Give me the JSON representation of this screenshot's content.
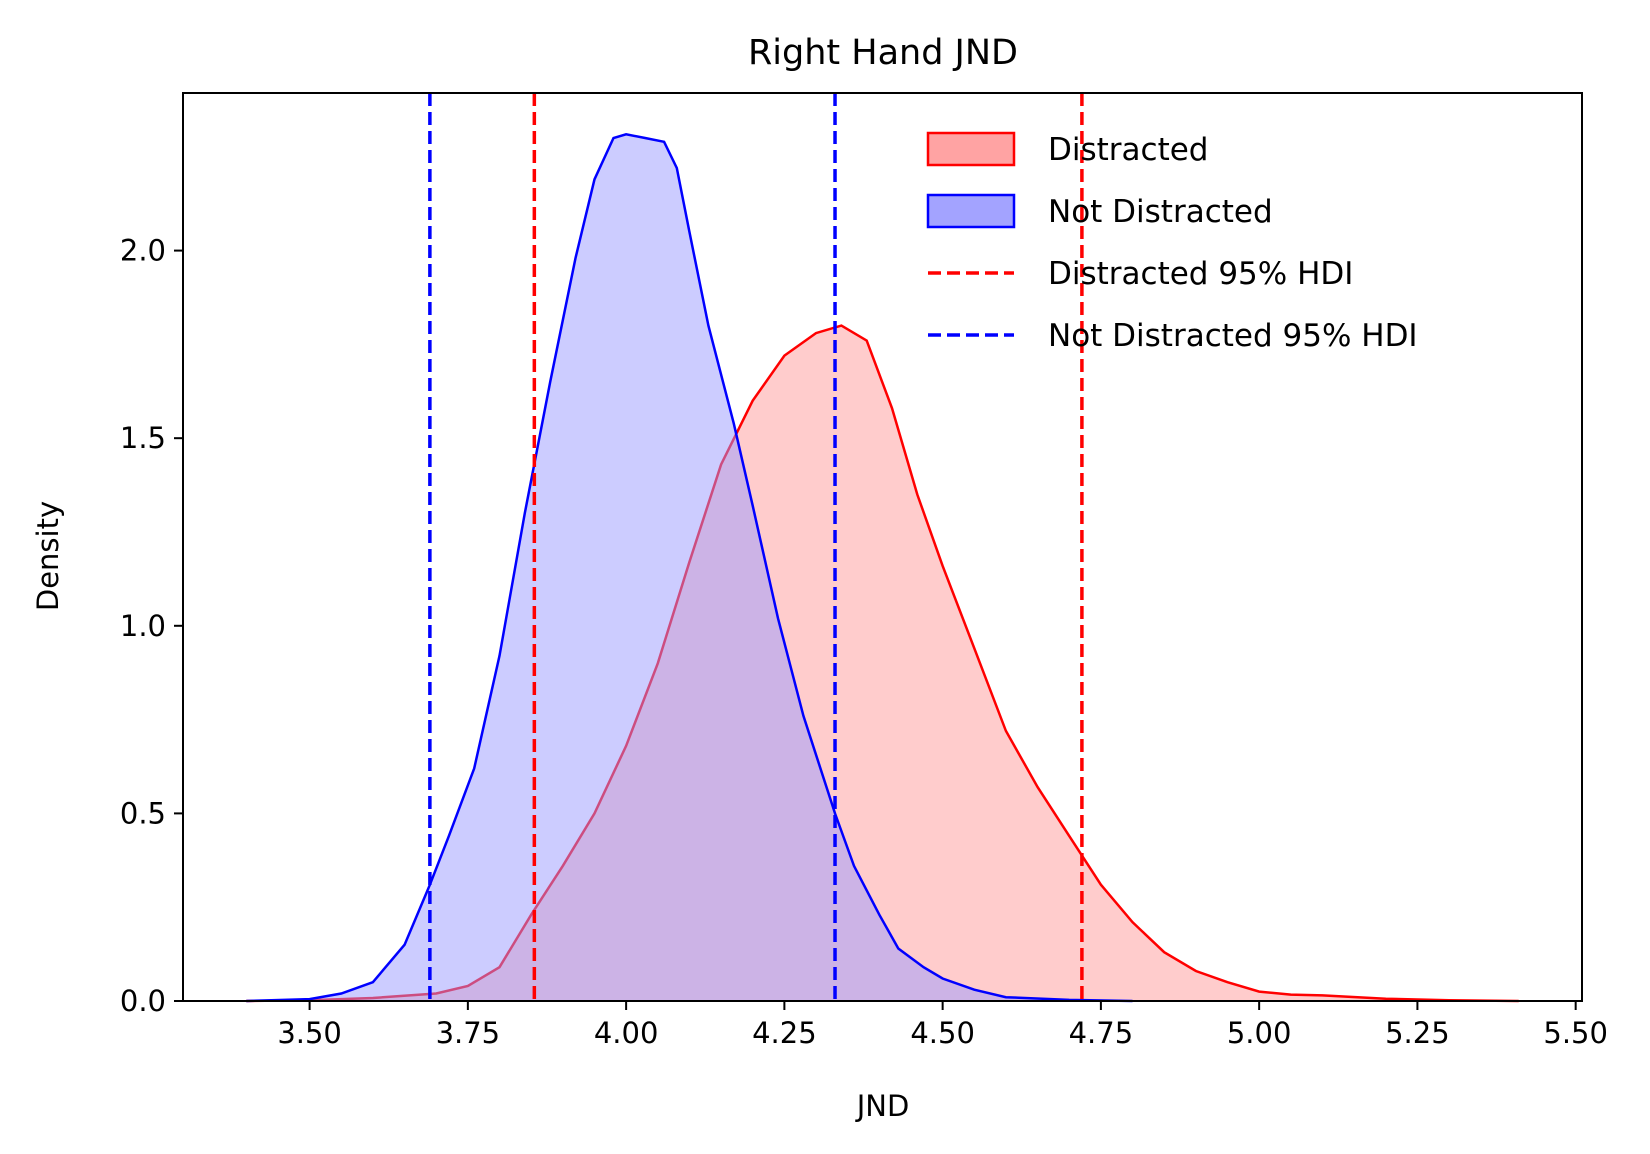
{
  "chart_data": {
    "type": "area",
    "title": "Right Hand JND",
    "xlabel": "JND",
    "ylabel": "Density",
    "xlim": [
      3.3,
      5.51
    ],
    "ylim": [
      0,
      2.42
    ],
    "xticks": [
      3.5,
      3.75,
      4.0,
      4.25,
      4.5,
      4.75,
      5.0,
      5.25,
      5.5
    ],
    "xtick_labels": [
      "3.50",
      "3.75",
      "4.00",
      "4.25",
      "4.50",
      "4.75",
      "5.00",
      "5.25",
      "5.50"
    ],
    "yticks": [
      0.0,
      0.5,
      1.0,
      1.5,
      2.0
    ],
    "ytick_labels": [
      "0.0",
      "0.5",
      "1.0",
      "1.5",
      "2.0"
    ],
    "grid": false,
    "legend_position": "top-right",
    "series": [
      {
        "name": "Distracted",
        "kind": "density",
        "color": "#ff0000",
        "fill": "#ff9999",
        "points": [
          [
            3.4,
            0.0
          ],
          [
            3.5,
            0.002
          ],
          [
            3.6,
            0.008
          ],
          [
            3.7,
            0.02
          ],
          [
            3.75,
            0.04
          ],
          [
            3.8,
            0.09
          ],
          [
            3.85,
            0.23
          ],
          [
            3.9,
            0.36
          ],
          [
            3.95,
            0.5
          ],
          [
            4.0,
            0.68
          ],
          [
            4.05,
            0.9
          ],
          [
            4.1,
            1.17
          ],
          [
            4.15,
            1.43
          ],
          [
            4.2,
            1.6
          ],
          [
            4.25,
            1.72
          ],
          [
            4.3,
            1.78
          ],
          [
            4.34,
            1.8
          ],
          [
            4.38,
            1.76
          ],
          [
            4.42,
            1.58
          ],
          [
            4.46,
            1.35
          ],
          [
            4.5,
            1.16
          ],
          [
            4.55,
            0.94
          ],
          [
            4.6,
            0.72
          ],
          [
            4.65,
            0.57
          ],
          [
            4.7,
            0.44
          ],
          [
            4.75,
            0.31
          ],
          [
            4.8,
            0.21
          ],
          [
            4.85,
            0.13
          ],
          [
            4.9,
            0.08
          ],
          [
            4.95,
            0.05
          ],
          [
            5.0,
            0.025
          ],
          [
            5.05,
            0.017
          ],
          [
            5.1,
            0.015
          ],
          [
            5.2,
            0.006
          ],
          [
            5.3,
            0.002
          ],
          [
            5.41,
            0.0
          ]
        ]
      },
      {
        "name": "Not Distracted",
        "kind": "density",
        "color": "#0000ff",
        "fill": "#9999ff",
        "points": [
          [
            3.4,
            0.0
          ],
          [
            3.5,
            0.005
          ],
          [
            3.55,
            0.02
          ],
          [
            3.6,
            0.05
          ],
          [
            3.65,
            0.15
          ],
          [
            3.69,
            0.31
          ],
          [
            3.72,
            0.44
          ],
          [
            3.76,
            0.62
          ],
          [
            3.8,
            0.92
          ],
          [
            3.84,
            1.3
          ],
          [
            3.88,
            1.65
          ],
          [
            3.92,
            1.98
          ],
          [
            3.95,
            2.19
          ],
          [
            3.98,
            2.3
          ],
          [
            4.0,
            2.31
          ],
          [
            4.03,
            2.3
          ],
          [
            4.06,
            2.29
          ],
          [
            4.08,
            2.22
          ],
          [
            4.1,
            2.05
          ],
          [
            4.13,
            1.8
          ],
          [
            4.17,
            1.54
          ],
          [
            4.2,
            1.32
          ],
          [
            4.24,
            1.02
          ],
          [
            4.28,
            0.76
          ],
          [
            4.33,
            0.5
          ],
          [
            4.36,
            0.36
          ],
          [
            4.4,
            0.23
          ],
          [
            4.43,
            0.14
          ],
          [
            4.47,
            0.09
          ],
          [
            4.5,
            0.06
          ],
          [
            4.55,
            0.03
          ],
          [
            4.6,
            0.01
          ],
          [
            4.7,
            0.003
          ],
          [
            4.8,
            0.0
          ]
        ]
      }
    ],
    "hdi_lines": [
      {
        "name": "Distracted 95% HDI",
        "color": "#ff0000",
        "x": [
          3.855,
          4.72
        ]
      },
      {
        "name": "Not Distracted 95% HDI",
        "color": "#0000ff",
        "x": [
          3.69,
          4.33
        ]
      }
    ],
    "legend": [
      {
        "label": "Distracted",
        "kind": "patch",
        "stroke": "#ff0000",
        "fill": "#ff9999"
      },
      {
        "label": "Not Distracted",
        "kind": "patch",
        "stroke": "#0000ff",
        "fill": "#9999ff"
      },
      {
        "label": "Distracted 95% HDI",
        "kind": "dashed",
        "stroke": "#ff0000"
      },
      {
        "label": "Not Distracted 95% HDI",
        "kind": "dashed",
        "stroke": "#0000ff"
      }
    ]
  }
}
